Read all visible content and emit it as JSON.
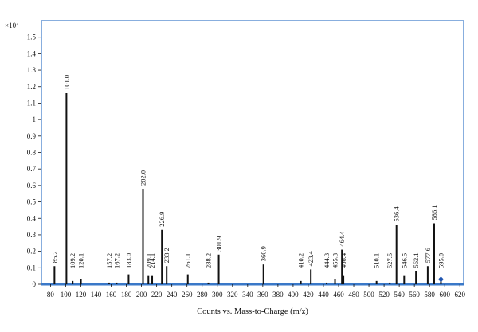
{
  "chart_data": {
    "type": "bar",
    "title": "",
    "xlabel": "Counts vs. Mass-to-Charge (m/z)",
    "ylabel": "",
    "y_multiplier_label": "×10⁴",
    "xlim": [
      68,
      625
    ],
    "ylim": [
      0,
      1.6
    ],
    "x_ticks": [
      80,
      100,
      120,
      140,
      160,
      180,
      200,
      220,
      240,
      260,
      280,
      300,
      320,
      340,
      360,
      380,
      400,
      420,
      440,
      460,
      480,
      500,
      520,
      540,
      560,
      580,
      600,
      620
    ],
    "y_ticks": [
      0,
      0.1,
      0.2,
      0.3,
      0.4,
      0.5,
      0.6,
      0.7,
      0.8,
      0.9,
      1,
      1.1,
      1.2,
      1.3,
      1.4,
      1.5
    ],
    "peaks": [
      {
        "mz": 85.2,
        "intensity": 0.11,
        "label": "85.2"
      },
      {
        "mz": 101.0,
        "intensity": 1.16,
        "label": "101.0"
      },
      {
        "mz": 109.2,
        "intensity": 0.02,
        "label": "109.2"
      },
      {
        "mz": 120.1,
        "intensity": 0.03,
        "label": "120.1"
      },
      {
        "mz": 157.2,
        "intensity": 0.01,
        "label": "157.2"
      },
      {
        "mz": 167.2,
        "intensity": 0.01,
        "label": "167.2"
      },
      {
        "mz": 183.0,
        "intensity": 0.06,
        "label": "183.0"
      },
      {
        "mz": 202.0,
        "intensity": 0.58,
        "label": "202.0"
      },
      {
        "mz": 209.1,
        "intensity": 0.05,
        "label": "209.1"
      },
      {
        "mz": 214.1,
        "intensity": 0.05,
        "label": "214.1"
      },
      {
        "mz": 226.9,
        "intensity": 0.33,
        "label": "226.9"
      },
      {
        "mz": 233.2,
        "intensity": 0.11,
        "label": "233.2"
      },
      {
        "mz": 261.1,
        "intensity": 0.06,
        "label": "261.1"
      },
      {
        "mz": 288.2,
        "intensity": 0.01,
        "label": "288.2"
      },
      {
        "mz": 301.9,
        "intensity": 0.18,
        "label": "301.9"
      },
      {
        "mz": 360.9,
        "intensity": 0.12,
        "label": "360.9"
      },
      {
        "mz": 410.2,
        "intensity": 0.02,
        "label": "410.2"
      },
      {
        "mz": 423.4,
        "intensity": 0.09,
        "label": "423.4"
      },
      {
        "mz": 444.3,
        "intensity": 0.01,
        "label": "444.3"
      },
      {
        "mz": 455.3,
        "intensity": 0.03,
        "label": "455.3"
      },
      {
        "mz": 464.4,
        "intensity": 0.21,
        "label": "464.4"
      },
      {
        "mz": 466.4,
        "intensity": 0.05,
        "label": "466.4"
      },
      {
        "mz": 510.1,
        "intensity": 0.02,
        "label": "510.1"
      },
      {
        "mz": 527.5,
        "intensity": 0.01,
        "label": "527.5"
      },
      {
        "mz": 536.4,
        "intensity": 0.36,
        "label": "536.4"
      },
      {
        "mz": 546.5,
        "intensity": 0.05,
        "label": "546.5"
      },
      {
        "mz": 562.1,
        "intensity": 0.08,
        "label": "562.1"
      },
      {
        "mz": 577.6,
        "intensity": 0.11,
        "label": "577.6"
      },
      {
        "mz": 586.1,
        "intensity": 0.37,
        "label": "586.1"
      },
      {
        "mz": 595.0,
        "intensity": 0.02,
        "label": "595.0"
      }
    ],
    "grid": false,
    "legend": "none",
    "colors": {
      "frame": "#3a78c8",
      "bars": "#111111",
      "marker": "#1f55b0"
    }
  }
}
